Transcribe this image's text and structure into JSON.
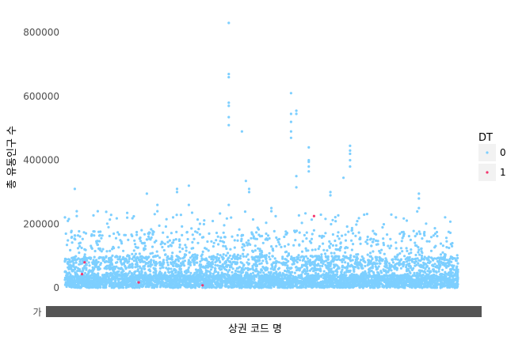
{
  "chart_data": {
    "type": "scatter",
    "title": "",
    "xlabel": "상권 코드 명",
    "ylabel": "총 유동인구 수",
    "ylim": [
      0,
      850000
    ],
    "yticks": [
      0,
      200000,
      400000,
      600000,
      800000
    ],
    "ytick_labels": [
      "0",
      "200000",
      "400000",
      "600000",
      "800000"
    ],
    "x_tick_first_label": "가",
    "x_category_count": 1200,
    "grid": false,
    "legend": {
      "title": "DT",
      "position": "right",
      "entries": [
        {
          "label": "0",
          "color": "#7dcfff"
        },
        {
          "label": "1",
          "color": "#f5366e"
        }
      ]
    },
    "series": [
      {
        "name": "0",
        "color": "#7dcfff",
        "outliers": [
          {
            "x": 30,
            "y": 310000
          },
          {
            "x": 36,
            "y": 240000
          },
          {
            "x": 36,
            "y": 225000
          },
          {
            "x": 100,
            "y": 240000
          },
          {
            "x": 190,
            "y": 235000
          },
          {
            "x": 190,
            "y": 220000
          },
          {
            "x": 250,
            "y": 295000
          },
          {
            "x": 282,
            "y": 260000
          },
          {
            "x": 282,
            "y": 240000
          },
          {
            "x": 342,
            "y": 310000
          },
          {
            "x": 342,
            "y": 300000
          },
          {
            "x": 378,
            "y": 320000
          },
          {
            "x": 378,
            "y": 260000
          },
          {
            "x": 500,
            "y": 830000
          },
          {
            "x": 500,
            "y": 670000
          },
          {
            "x": 500,
            "y": 660000
          },
          {
            "x": 500,
            "y": 580000
          },
          {
            "x": 500,
            "y": 570000
          },
          {
            "x": 500,
            "y": 535000
          },
          {
            "x": 500,
            "y": 510000
          },
          {
            "x": 500,
            "y": 260000
          },
          {
            "x": 540,
            "y": 490000
          },
          {
            "x": 552,
            "y": 335000
          },
          {
            "x": 562,
            "y": 310000
          },
          {
            "x": 562,
            "y": 300000
          },
          {
            "x": 630,
            "y": 250000
          },
          {
            "x": 630,
            "y": 240000
          },
          {
            "x": 690,
            "y": 610000
          },
          {
            "x": 690,
            "y": 545000
          },
          {
            "x": 690,
            "y": 520000
          },
          {
            "x": 690,
            "y": 490000
          },
          {
            "x": 690,
            "y": 470000
          },
          {
            "x": 706,
            "y": 555000
          },
          {
            "x": 706,
            "y": 545000
          },
          {
            "x": 706,
            "y": 350000
          },
          {
            "x": 706,
            "y": 315000
          },
          {
            "x": 744,
            "y": 440000
          },
          {
            "x": 744,
            "y": 400000
          },
          {
            "x": 744,
            "y": 395000
          },
          {
            "x": 744,
            "y": 380000
          },
          {
            "x": 744,
            "y": 365000
          },
          {
            "x": 810,
            "y": 300000
          },
          {
            "x": 810,
            "y": 290000
          },
          {
            "x": 850,
            "y": 345000
          },
          {
            "x": 870,
            "y": 445000
          },
          {
            "x": 870,
            "y": 430000
          },
          {
            "x": 870,
            "y": 420000
          },
          {
            "x": 870,
            "y": 400000
          },
          {
            "x": 870,
            "y": 380000
          },
          {
            "x": 1080,
            "y": 295000
          },
          {
            "x": 1080,
            "y": 280000
          },
          {
            "x": 1080,
            "y": 250000
          }
        ]
      },
      {
        "name": "1",
        "color": "#f5366e",
        "points": [
          {
            "x": 60,
            "y": 80000
          },
          {
            "x": 52,
            "y": 43000
          },
          {
            "x": 225,
            "y": 17000
          },
          {
            "x": 420,
            "y": 8000
          },
          {
            "x": 760,
            "y": 225000
          }
        ]
      }
    ]
  }
}
